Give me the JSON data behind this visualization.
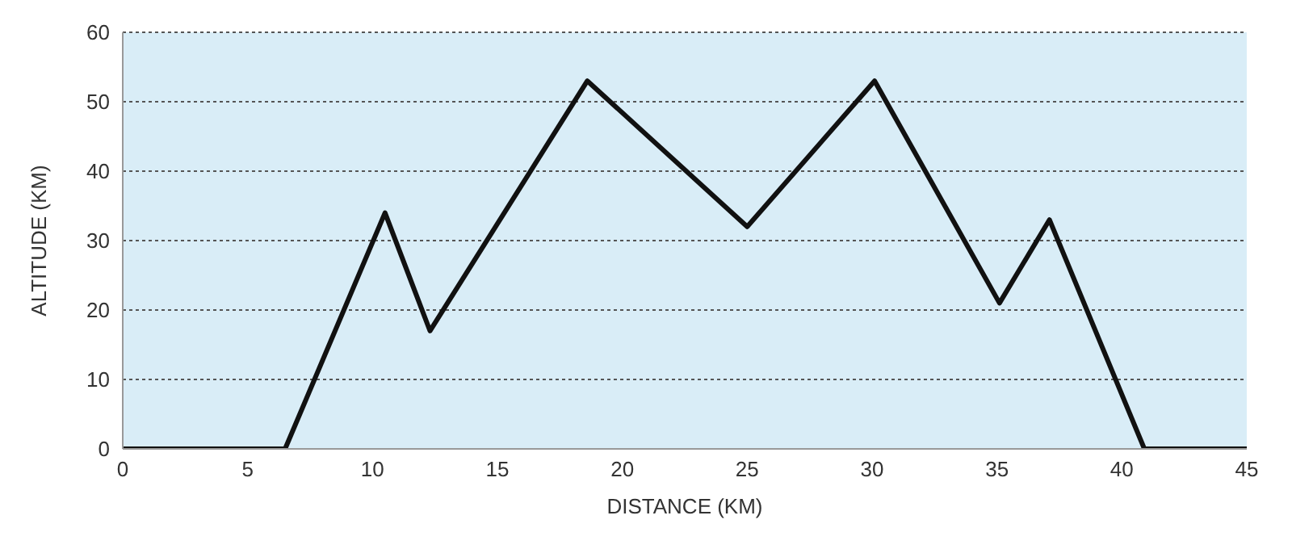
{
  "chart_data": {
    "type": "line",
    "xlabel": "DISTANCE (KM)",
    "ylabel": "ALTITUDE (KM)",
    "x": [
      0,
      6.5,
      10.5,
      12.3,
      18.6,
      25,
      30.1,
      35.1,
      37.1,
      40.9,
      45
    ],
    "series": [
      {
        "color": "#111111",
        "values": [
          0,
          0,
          34,
          17,
          53,
          32,
          53,
          21,
          33,
          0,
          0
        ]
      }
    ],
    "xlim": [
      0,
      45
    ],
    "xticks": [
      0,
      5,
      10,
      15,
      20,
      25,
      30,
      35,
      40,
      45
    ],
    "ylim": [
      0,
      60
    ],
    "yticks": [
      0,
      10,
      20,
      30,
      40,
      50,
      60
    ],
    "grid": "y"
  }
}
